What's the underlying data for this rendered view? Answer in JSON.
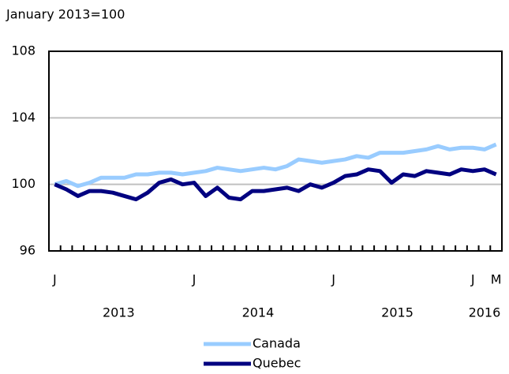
{
  "chart_data": {
    "type": "line",
    "subtitle": "January 2013=100",
    "categories": [
      "J",
      null,
      null,
      null,
      null,
      null,
      null,
      null,
      null,
      null,
      null,
      null,
      "J",
      null,
      null,
      null,
      null,
      null,
      null,
      null,
      null,
      null,
      null,
      null,
      "J",
      null,
      null,
      null,
      null,
      null,
      null,
      null,
      null,
      null,
      null,
      null,
      "J",
      null,
      "M"
    ],
    "year_labels": [
      "2013",
      "2014",
      "2015",
      "2016"
    ],
    "series": [
      {
        "name": "Canada",
        "color": "#99ccff",
        "values": [
          100.0,
          100.2,
          99.9,
          100.1,
          100.4,
          100.4,
          100.4,
          100.6,
          100.6,
          100.7,
          100.7,
          100.6,
          100.7,
          100.8,
          101.0,
          100.9,
          100.8,
          100.9,
          101.0,
          100.9,
          101.1,
          101.5,
          101.4,
          101.3,
          101.4,
          101.5,
          101.7,
          101.6,
          101.9,
          101.9,
          101.9,
          102.0,
          102.1,
          102.3,
          102.1,
          102.2,
          102.2,
          102.1,
          102.4
        ]
      },
      {
        "name": "Quebec",
        "color": "#000080",
        "values": [
          100.0,
          99.7,
          99.3,
          99.6,
          99.6,
          99.5,
          99.3,
          99.1,
          99.5,
          100.1,
          100.3,
          100.0,
          100.1,
          99.3,
          99.8,
          99.2,
          99.1,
          99.6,
          99.6,
          99.7,
          99.8,
          99.6,
          100.0,
          99.8,
          100.1,
          100.5,
          100.6,
          100.9,
          100.8,
          100.1,
          100.6,
          100.5,
          100.8,
          100.7,
          100.6,
          100.9,
          100.8,
          100.9,
          100.6
        ]
      }
    ],
    "ylim": [
      96,
      108
    ],
    "yticks": [
      96,
      100,
      104,
      108
    ],
    "grid": true
  }
}
